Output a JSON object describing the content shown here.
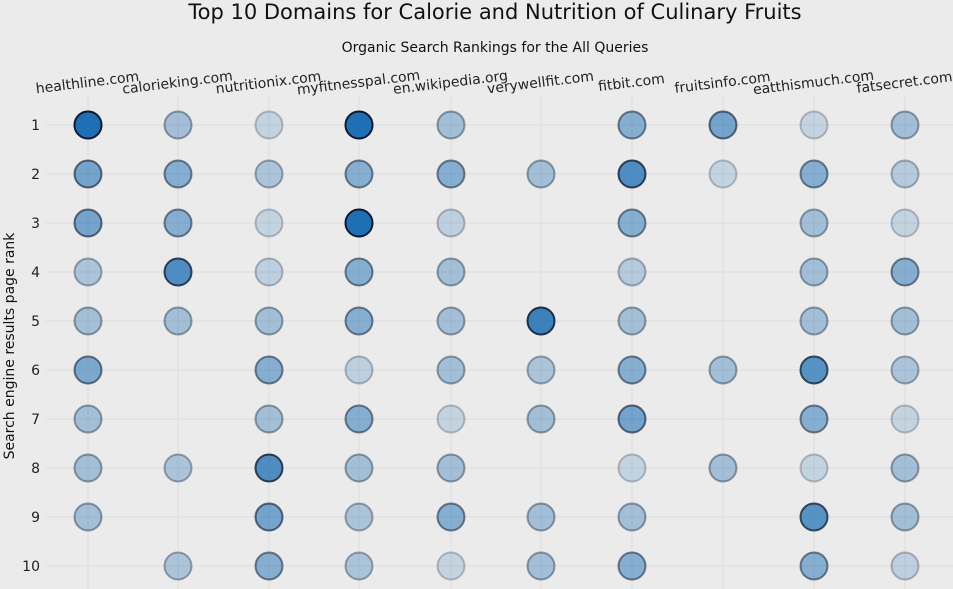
{
  "chart_data": {
    "type": "scatter",
    "title": "Top 10 Domains for Calorie and Nutrition of Culinary Fruits",
    "subtitle": "Organic Search Rankings for the All Queries",
    "xlabel": "",
    "ylabel": "Search engine results page rank",
    "categories": [
      "healthline.com",
      "calorieking.com",
      "nutritionix.com",
      "myfitnesspal.com",
      "en.wikipedia.org",
      "verywellfit.com",
      "fitbit.com",
      "fruitsinfo.com",
      "eatthismuch.com",
      "fatsecret.com"
    ],
    "y_ticks": [
      "1",
      "2",
      "3",
      "4",
      "5",
      "6",
      "7",
      "8",
      "9",
      "10"
    ],
    "ylim": [
      1,
      10
    ],
    "y_inverted": true,
    "x_tick_rotation_deg": -7,
    "grid": true,
    "legend": "none",
    "marker_color": "#1f6fb4",
    "marker_edge_color": "#0c1a30",
    "note_values": "Each value is the relative frequency (0-1) of the domain at that rank, shown by marker opacity; null = no marker.",
    "values": [
      [
        1.0,
        0.55,
        0.55,
        0.25,
        0.3,
        0.5,
        0.3,
        0.3,
        0.3,
        null
      ],
      [
        0.3,
        0.45,
        0.45,
        0.75,
        0.3,
        null,
        null,
        0.25,
        null,
        0.25
      ],
      [
        0.12,
        0.25,
        0.12,
        0.15,
        0.3,
        0.45,
        0.3,
        0.75,
        0.55,
        0.45
      ],
      [
        1.0,
        0.45,
        1.0,
        0.45,
        0.45,
        0.15,
        0.45,
        0.3,
        0.25,
        0.25
      ],
      [
        0.3,
        0.45,
        0.15,
        0.3,
        0.3,
        0.3,
        0.12,
        0.3,
        0.45,
        0.12
      ],
      [
        null,
        0.3,
        null,
        null,
        0.85,
        0.25,
        0.3,
        null,
        0.3,
        0.3
      ],
      [
        0.45,
        0.75,
        0.45,
        0.2,
        0.3,
        0.45,
        0.55,
        0.12,
        0.3,
        0.45
      ],
      [
        0.55,
        0.12,
        null,
        null,
        null,
        0.3,
        null,
        0.3,
        null,
        null
      ],
      [
        0.12,
        0.45,
        0.3,
        0.3,
        0.3,
        0.7,
        0.45,
        0.12,
        0.7,
        0.45
      ],
      [
        0.3,
        0.2,
        0.12,
        0.45,
        0.3,
        0.25,
        0.12,
        0.3,
        0.3,
        0.15
      ]
    ]
  }
}
